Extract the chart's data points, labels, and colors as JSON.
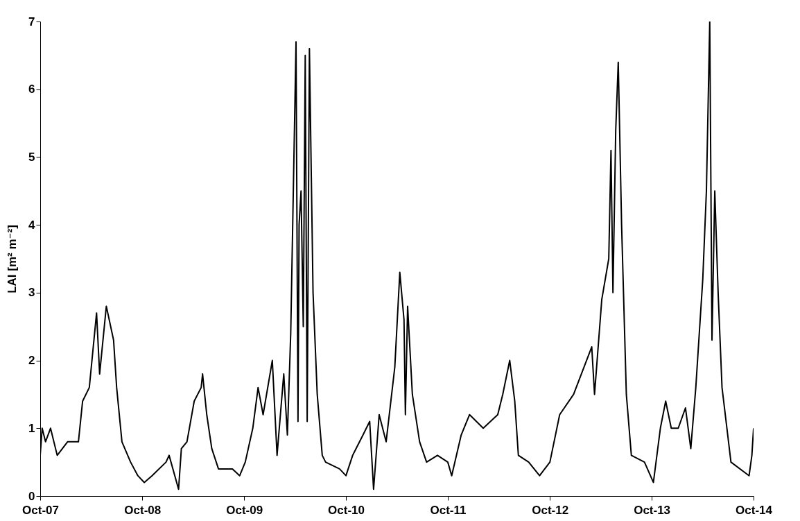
{
  "chart_data": {
    "type": "line",
    "ylabel": "LAI [m² m⁻²]",
    "x": [
      "2007-10-01",
      "2007-10-08",
      "2007-10-20",
      "2007-11-07",
      "2007-12-01",
      "2008-01-07",
      "2008-02-15",
      "2008-03-01",
      "2008-03-25",
      "2008-04-20",
      "2008-05-01",
      "2008-05-25",
      "2008-06-20",
      "2008-07-01",
      "2008-07-20",
      "2008-08-20",
      "2008-09-15",
      "2008-10-08",
      "2008-11-05",
      "2008-12-25",
      "2009-01-05",
      "2009-02-08",
      "2009-02-18",
      "2009-03-10",
      "2009-04-05",
      "2009-04-30",
      "2009-05-05",
      "2009-05-20",
      "2009-06-07",
      "2009-07-01",
      "2009-08-20",
      "2009-09-15",
      "2009-10-05",
      "2009-11-01",
      "2009-11-20",
      "2009-12-08",
      "2010-01-10",
      "2010-01-27",
      "2010-02-20",
      "2010-03-05",
      "2010-03-17",
      "2010-04-05",
      "2010-04-12",
      "2010-04-16",
      "2010-04-23",
      "2010-05-01",
      "2010-05-08",
      "2010-05-15",
      "2010-05-23",
      "2010-06-05",
      "2010-06-20",
      "2010-07-08",
      "2010-07-20",
      "2010-09-08",
      "2010-10-01",
      "2010-10-25",
      "2010-12-01",
      "2010-12-25",
      "2011-01-08",
      "2011-01-28",
      "2011-02-22",
      "2011-03-25",
      "2011-04-12",
      "2011-04-27",
      "2011-05-02",
      "2011-05-10",
      "2011-05-27",
      "2011-06-22",
      "2011-07-17",
      "2011-08-25",
      "2011-10-01",
      "2011-10-15",
      "2011-11-18",
      "2011-12-18",
      "2012-02-05",
      "2012-03-28",
      "2012-04-15",
      "2012-05-10",
      "2012-05-28",
      "2012-06-10",
      "2012-07-17",
      "2012-08-25",
      "2012-10-01",
      "2012-11-05",
      "2012-12-25",
      "2013-02-28",
      "2013-03-10",
      "2013-04-05",
      "2013-04-30",
      "2013-05-08",
      "2013-05-15",
      "2013-05-25",
      "2013-06-03",
      "2013-06-15",
      "2013-07-02",
      "2013-07-20",
      "2013-09-05",
      "2013-10-07",
      "2013-11-01",
      "2013-11-20",
      "2013-12-10",
      "2014-01-04",
      "2014-01-30",
      "2014-02-18",
      "2014-03-08",
      "2014-04-02",
      "2014-04-15",
      "2014-04-27",
      "2014-05-05",
      "2014-05-15",
      "2014-05-27",
      "2014-06-10",
      "2014-07-12",
      "2014-09-15",
      "2014-09-25",
      "2014-10-01"
    ],
    "series": [
      {
        "color": "#000000",
        "values": [
          0.6,
          1.0,
          0.8,
          1.0,
          0.6,
          0.8,
          0.8,
          1.4,
          1.6,
          2.7,
          1.8,
          2.8,
          2.3,
          1.6,
          0.8,
          0.5,
          0.3,
          0.2,
          0.3,
          0.5,
          0.6,
          0.1,
          0.7,
          0.8,
          1.4,
          1.6,
          1.8,
          1.2,
          0.7,
          0.4,
          0.4,
          0.3,
          0.5,
          1.0,
          1.6,
          1.2,
          2.0,
          0.6,
          1.8,
          0.9,
          2.4,
          6.7,
          1.1,
          4.0,
          4.5,
          2.5,
          6.5,
          1.1,
          6.6,
          3.0,
          1.5,
          0.6,
          0.5,
          0.4,
          0.3,
          0.6,
          0.9,
          1.1,
          0.1,
          1.2,
          0.8,
          1.9,
          3.3,
          2.6,
          1.2,
          2.8,
          1.5,
          0.8,
          0.5,
          0.6,
          0.5,
          0.3,
          0.9,
          1.2,
          1.0,
          1.2,
          1.5,
          2.0,
          1.4,
          0.6,
          0.5,
          0.3,
          0.5,
          1.2,
          1.5,
          2.2,
          1.5,
          2.9,
          3.5,
          5.1,
          3.0,
          5.4,
          6.4,
          4.0,
          1.5,
          0.6,
          0.5,
          0.2,
          1.0,
          1.4,
          1.0,
          1.0,
          1.3,
          0.7,
          1.6,
          3.2,
          4.5,
          7.0,
          2.3,
          4.5,
          3.0,
          1.6,
          0.5,
          0.3,
          0.6,
          1.0
        ]
      }
    ],
    "xlim": [
      "2007-10-01",
      "2014-10-01"
    ],
    "xticks": [
      {
        "value": "2007-10-01",
        "label": "Oct-07"
      },
      {
        "value": "2008-10-01",
        "label": "Oct-08"
      },
      {
        "value": "2009-10-01",
        "label": "Oct-09"
      },
      {
        "value": "2010-10-01",
        "label": "Oct-10"
      },
      {
        "value": "2011-10-01",
        "label": "Oct-11"
      },
      {
        "value": "2012-10-01",
        "label": "Oct-12"
      },
      {
        "value": "2013-10-01",
        "label": "Oct-13"
      },
      {
        "value": "2014-10-01",
        "label": "Oct-14"
      }
    ],
    "ylim": [
      0,
      7
    ],
    "yticks": [
      0,
      1,
      2,
      3,
      4,
      5,
      6,
      7
    ]
  }
}
